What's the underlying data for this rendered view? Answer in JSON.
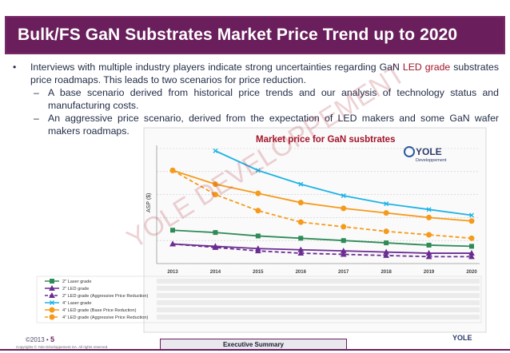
{
  "slide": {
    "title": "Bulk/FS GaN Substrates Market Price Trend up to 2020",
    "bullet_marker": "•",
    "dash_marker": "–",
    "bullet_main_pre": "Interviews with multiple industry players indicate strong uncertainties regarding GaN ",
    "bullet_main_hl": "LED grade",
    "bullet_main_post": " substrates price roadmaps. This leads to two scenarios for price reduction.",
    "sub_bullets": [
      "A base scenario derived from historical price trends and our analysis of technology status and manufacturing costs.",
      "An aggressive price scenario, derived from the expectation of LED makers and some GaN wafer makers roadmaps."
    ],
    "watermark": "YOLE DEVELOPPEMENT",
    "footer": {
      "year": "©2013 •",
      "page": "5",
      "copyright": "Copyrights © Yole Développement SA. All rights reserved.",
      "section": "Executive Summary",
      "logo": "YOLE"
    }
  },
  "chart_data": {
    "type": "line",
    "title": "Market price for GaN susbtrates",
    "logo_text": "YOLE",
    "logo_subtext": "Developpement",
    "ylabel": "ASP ($)",
    "xlabel": "",
    "categories": [
      "2013",
      "2014",
      "2015",
      "2016",
      "2017",
      "2018",
      "2019",
      "2020"
    ],
    "ylim": [
      0,
      100
    ],
    "grid": true,
    "series": [
      {
        "name": "2\" Laser grade",
        "color": "#2e8b57",
        "style": "solid",
        "marker": "square",
        "values": [
          29,
          27,
          24,
          22,
          20,
          18,
          16,
          15
        ]
      },
      {
        "name": "2\" LED grade",
        "color": "#6a2c91",
        "style": "solid",
        "marker": "triangle",
        "values": [
          17,
          15,
          13,
          12,
          11,
          10,
          9,
          9
        ]
      },
      {
        "name": "2\" LED grade (Aggressive Price Reduction)",
        "color": "#6a2c91",
        "style": "dashed",
        "marker": "triangle",
        "values": [
          17,
          14,
          11,
          9,
          8,
          7,
          6,
          6
        ]
      },
      {
        "name": "4\" Laser grade",
        "color": "#1fb3e5",
        "style": "solid",
        "marker": "x",
        "values": [
          null,
          98,
          81,
          69,
          59,
          52,
          47,
          42
        ]
      },
      {
        "name": "4\" LED grade (Base Price Reduction)",
        "color": "#f59a1a",
        "style": "solid",
        "marker": "circle",
        "values": [
          81,
          69,
          61,
          53,
          48,
          44,
          40,
          37
        ]
      },
      {
        "name": "4\" LED grade (Aggressive Price Reduction)",
        "color": "#f59a1a",
        "style": "dashed",
        "marker": "circle",
        "values": [
          81,
          60,
          46,
          36,
          32,
          28,
          25,
          22
        ]
      }
    ]
  }
}
